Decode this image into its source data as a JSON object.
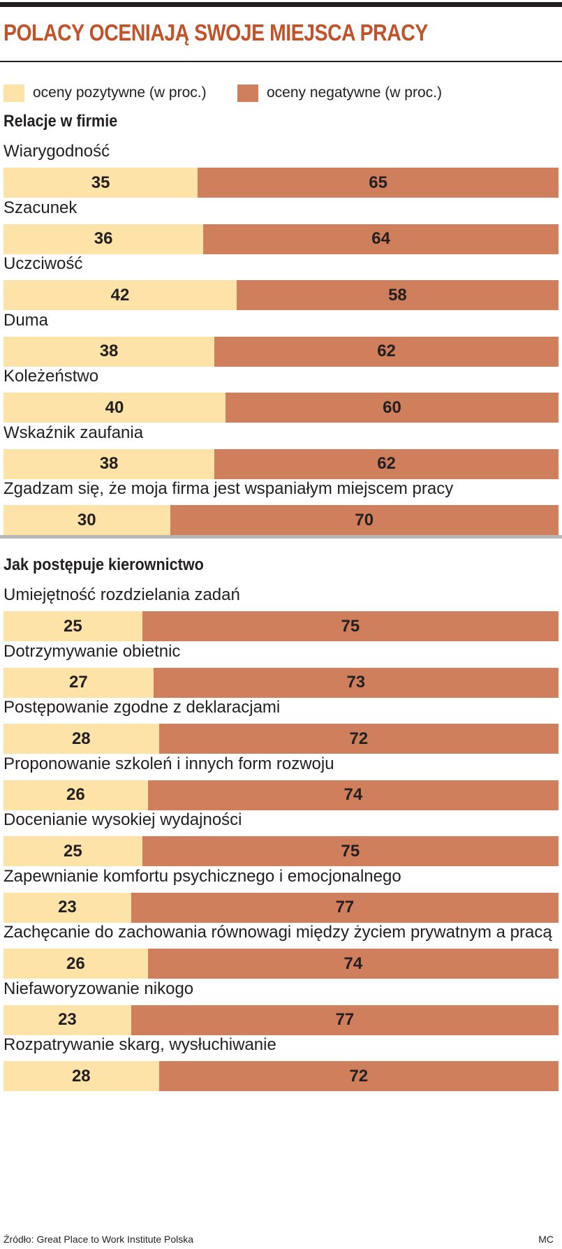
{
  "title": "POLACY OCENIAJĄ SWOJE MIEJSCA PRACY",
  "legend": {
    "positive": {
      "label": "oceny pozytywne (w proc.)",
      "color": "#fde3a7"
    },
    "negative": {
      "label": "oceny negatywne (w proc.)",
      "color": "#cf7f5b"
    }
  },
  "footer": {
    "source": "Źródło: Great Place to Work Institute Polska",
    "author": "MC"
  },
  "chart_data": [
    {
      "type": "bar",
      "stacked": true,
      "orientation": "horizontal",
      "title": "Relacje w firmie",
      "categories": [
        "Wiarygodność",
        "Szacunek",
        "Uczciwość",
        "Duma",
        "Koleżeństwo",
        "Wskaźnik zaufania",
        "Zgadzam się, że moja firma jest wspaniałym miejscem pracy"
      ],
      "series": [
        {
          "name": "oceny pozytywne (w proc.)",
          "values": [
            35,
            36,
            42,
            38,
            40,
            38,
            30
          ]
        },
        {
          "name": "oceny negatywne (w proc.)",
          "values": [
            65,
            64,
            58,
            62,
            60,
            62,
            70
          ]
        }
      ],
      "xlim": [
        0,
        100
      ]
    },
    {
      "type": "bar",
      "stacked": true,
      "orientation": "horizontal",
      "title": "Jak postępuje kierownictwo",
      "categories": [
        "Umiejętność rozdzielania zadań",
        "Dotrzymywanie obietnic",
        "Postępowanie zgodne z deklaracjami",
        "Proponowanie szkoleń i innych form rozwoju",
        "Docenianie wysokiej wydajności",
        "Zapewnianie komfortu psychicznego i emocjonalnego",
        "Zachęcanie do zachowania równowagi między życiem prywatnym a pracą",
        "Niefaworyzowanie nikogo",
        "Rozpatrywanie skarg, wysłuchiwanie"
      ],
      "series": [
        {
          "name": "oceny pozytywne (w proc.)",
          "values": [
            25,
            27,
            28,
            26,
            25,
            23,
            26,
            23,
            28
          ]
        },
        {
          "name": "oceny negatywne (w proc.)",
          "values": [
            75,
            73,
            72,
            74,
            75,
            77,
            74,
            77,
            72
          ]
        }
      ],
      "xlim": [
        0,
        100
      ]
    }
  ]
}
